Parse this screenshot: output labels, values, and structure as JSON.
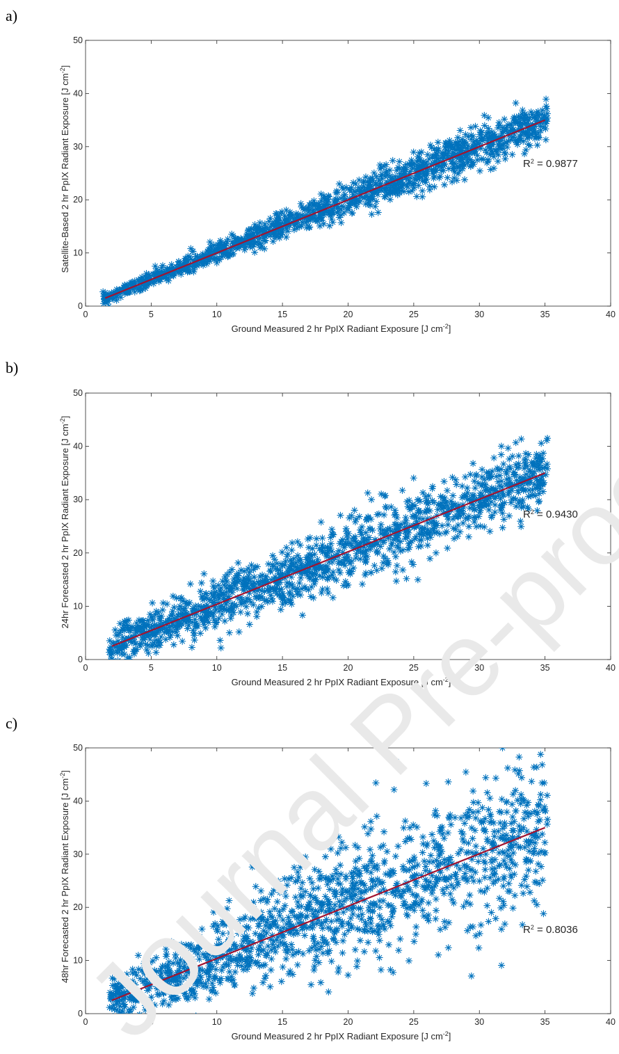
{
  "watermark": "Journal Pre-proof",
  "colors": {
    "scatter": "#0072BD",
    "fit_line": "#A2142F",
    "axis": "#262626",
    "watermark": "#e9e9e9"
  },
  "chart_data": [
    {
      "type": "scatter",
      "panel_label": "a)",
      "xlabel": "Ground Measured 2 hr PpIX Radiant Exposure [J cm",
      "xlabel_sup": "-2",
      "xlabel_suffix": "]",
      "ylabel": "Satellite-Based 2 hr PpIX Radiant Exposure [J cm",
      "ylabel_sup": "-2",
      "ylabel_suffix": "]",
      "xlim": [
        0,
        40
      ],
      "ylim": [
        0,
        50
      ],
      "xticks": [
        0,
        5,
        10,
        15,
        20,
        25,
        30,
        35,
        40
      ],
      "yticks": [
        0,
        10,
        20,
        30,
        40,
        50
      ],
      "marker": "asterisk",
      "fit_line": {
        "x": [
          1.5,
          35
        ],
        "y": [
          1.5,
          35
        ]
      },
      "r2_text": "R",
      "r2_sup": "2",
      "r2_value": " = 0.9877",
      "scatter_envelope": {
        "x_range": [
          1.3,
          35.2
        ],
        "spread": [
          [
            1.5,
            0.5
          ],
          [
            10,
            1.0
          ],
          [
            20,
            1.5
          ],
          [
            30,
            2.0
          ],
          [
            35,
            1.8
          ]
        ]
      }
    },
    {
      "type": "scatter",
      "panel_label": "b)",
      "xlabel": "Ground Measured 2 hr PpIX Radiant Exposure [J cm",
      "xlabel_sup": "-2",
      "xlabel_suffix": "]",
      "ylabel": "24hr Forecasted 2 hr PpIX Radiant Exposure [J cm",
      "ylabel_sup": "-2",
      "ylabel_suffix": "]",
      "xlim": [
        0,
        40
      ],
      "ylim": [
        0,
        50
      ],
      "xticks": [
        0,
        5,
        10,
        15,
        20,
        25,
        30,
        35,
        40
      ],
      "yticks": [
        0,
        10,
        20,
        30,
        40,
        50
      ],
      "marker": "asterisk",
      "fit_line": {
        "x": [
          2,
          35
        ],
        "y": [
          2.5,
          35
        ]
      },
      "r2_text": "R",
      "r2_sup": "2",
      "r2_value": " = 0.9430",
      "scatter_envelope": {
        "x_range": [
          1.8,
          35.2
        ],
        "spread": [
          [
            2,
            2.0
          ],
          [
            10,
            2.5
          ],
          [
            20,
            3.0
          ],
          [
            30,
            3.3
          ],
          [
            35,
            3.0
          ]
        ]
      }
    },
    {
      "type": "scatter",
      "panel_label": "c)",
      "xlabel": "Ground Measured 2 hr PpIX Radiant Exposure [J cm",
      "xlabel_sup": "-2",
      "xlabel_suffix": "]",
      "ylabel": "48hr Forecasted 2 hr PpIX Radiant Exposure [J cm",
      "ylabel_sup": "-2",
      "ylabel_suffix": "]",
      "xlim": [
        0,
        40
      ],
      "ylim": [
        0,
        50
      ],
      "xticks": [
        0,
        5,
        10,
        15,
        20,
        25,
        30,
        35,
        40
      ],
      "yticks": [
        0,
        10,
        20,
        30,
        40,
        50
      ],
      "marker": "asterisk",
      "fit_line": {
        "x": [
          2,
          35
        ],
        "y": [
          2.5,
          35
        ]
      },
      "r2_text": "R",
      "r2_sup": "2",
      "r2_value": " = 0.8036",
      "scatter_envelope": {
        "x_range": [
          1.8,
          35.2
        ],
        "spread": [
          [
            2,
            2.5
          ],
          [
            10,
            4.0
          ],
          [
            20,
            5.5
          ],
          [
            30,
            7.5
          ],
          [
            35,
            7.0
          ]
        ]
      }
    }
  ]
}
